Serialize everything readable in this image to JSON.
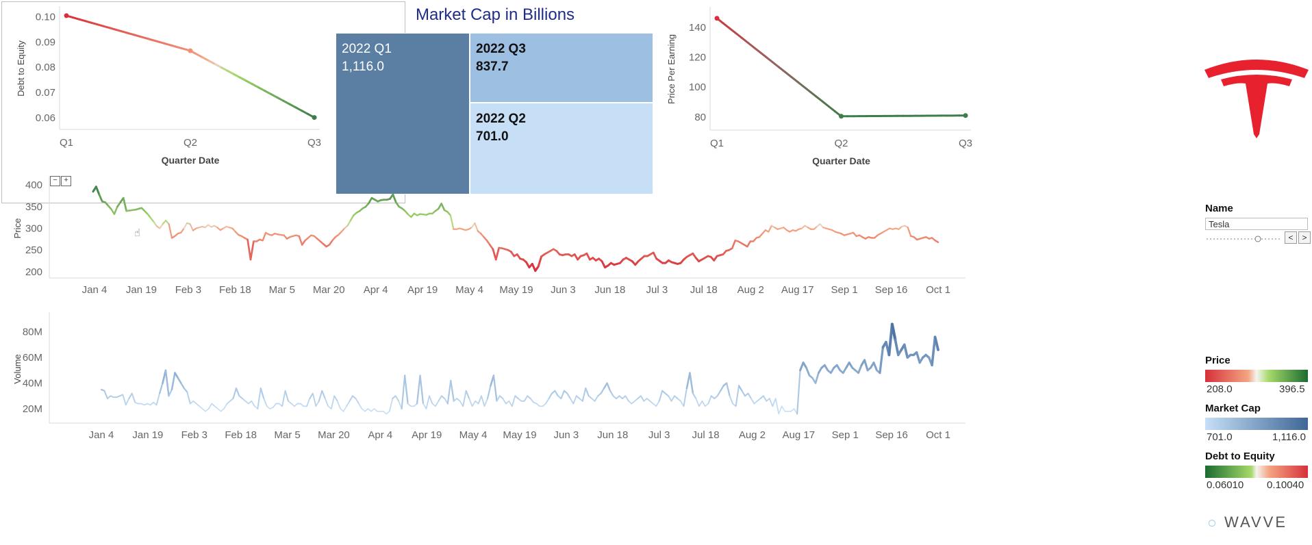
{
  "debt_chart": {
    "ylabel": "Debt to Equity",
    "xlabel": "Quarter Date",
    "categories": [
      "Q1",
      "Q2",
      "Q3"
    ],
    "values": [
      0.1004,
      0.0865,
      0.0601
    ],
    "yticks": [
      0.06,
      0.07,
      0.08,
      0.09,
      0.1
    ],
    "ytick_labels": [
      "0.06",
      "0.07",
      "0.08",
      "0.09",
      "0.10"
    ],
    "ylim": [
      0.057,
      0.102
    ]
  },
  "treemap": {
    "title": "Market Cap in Billions",
    "cells": [
      {
        "label": "2022 Q1",
        "value": "1,116.0",
        "color": "#5b7ea3",
        "text_color": "#ffffff"
      },
      {
        "label": "2022 Q3",
        "value": "837.7",
        "color": "#9dbfe2",
        "text_color": "#111111"
      },
      {
        "label": "2022 Q2",
        "value": "701.0",
        "color": "#c6dff6",
        "text_color": "#111111"
      }
    ]
  },
  "pe_chart": {
    "ylabel": "Price Per Earning",
    "xlabel": "Quarter Date",
    "categories": [
      "Q1",
      "Q2",
      "Q3"
    ],
    "values": [
      146,
      80.5,
      81
    ],
    "yticks": [
      80,
      100,
      120,
      140
    ],
    "ytick_labels": [
      "80",
      "100",
      "120",
      "140"
    ],
    "ylim": [
      74,
      150
    ]
  },
  "price_chart": {
    "ylabel": "Price",
    "yticks": [
      200,
      250,
      300,
      350,
      400
    ],
    "ytick_labels": [
      "200",
      "250",
      "300",
      "350",
      "400"
    ],
    "ylim": [
      195,
      405
    ]
  },
  "volume_chart": {
    "ylabel": "Volume",
    "yticks": [
      20,
      40,
      60,
      80
    ],
    "ytick_labels": [
      "20M",
      "40M",
      "60M",
      "80M"
    ],
    "ylim": [
      12,
      90
    ]
  },
  "x_months": [
    "Jan 4",
    "Jan 19",
    "Feb 3",
    "Feb 18",
    "Mar 5",
    "Mar 20",
    "Apr 4",
    "Apr 19",
    "May 4",
    "May 19",
    "Jun 3",
    "Jun 18",
    "Jul 3",
    "Jul 18",
    "Aug 2",
    "Aug 17",
    "Sep 1",
    "Sep 16",
    "Oct 1"
  ],
  "chart_data": [
    {
      "type": "line",
      "ylabel": "Debt to Equity",
      "xlabel": "Quarter Date",
      "categories": [
        "Q1",
        "Q2",
        "Q3"
      ],
      "values": [
        0.1004,
        0.0865,
        0.0601
      ],
      "ylim": [
        0.057,
        0.102
      ]
    },
    {
      "type": "table",
      "title": "Market Cap in Billions",
      "categories": [
        "2022 Q1",
        "2022 Q3",
        "2022 Q2"
      ],
      "values": [
        1116.0,
        837.7,
        701.0
      ]
    },
    {
      "type": "line",
      "ylabel": "Price Per Earning",
      "xlabel": "Quarter Date",
      "categories": [
        "Q1",
        "Q2",
        "Q3"
      ],
      "values": [
        146,
        80.5,
        81
      ],
      "ylim": [
        74,
        150
      ]
    },
    {
      "type": "line",
      "ylabel": "Price",
      "x_start": "Jan 4",
      "x_end": "Oct 1",
      "values": [
        385,
        396,
        378,
        362,
        360,
        352,
        344,
        333,
        350,
        360,
        370,
        340,
        341,
        342,
        343,
        345,
        347,
        340,
        333,
        324,
        315,
        305,
        300,
        310,
        318,
        310,
        278,
        282,
        288,
        290,
        300,
        312,
        310,
        295,
        300,
        302,
        304,
        302,
        308,
        303,
        306,
        302,
        296,
        300,
        304,
        302,
        300,
        292,
        285,
        282,
        278,
        274,
        228,
        270,
        270,
        274,
        272,
        290,
        286,
        284,
        288,
        286,
        285,
        284,
        276,
        280,
        282,
        284,
        282,
        262,
        272,
        278,
        284,
        282,
        276,
        270,
        264,
        258,
        262,
        272,
        280,
        285,
        292,
        300,
        306,
        318,
        330,
        336,
        340,
        346,
        350,
        358,
        370,
        366,
        362,
        365,
        366,
        366,
        368,
        378,
        360,
        350,
        346,
        340,
        332,
        326,
        334,
        330,
        333,
        332,
        331,
        334,
        334,
        340,
        345,
        357,
        342,
        338,
        330,
        298,
        298,
        300,
        298,
        296,
        298,
        302,
        312,
        294,
        288,
        280,
        272,
        262,
        252,
        228,
        255,
        254,
        252,
        250,
        246,
        236,
        240,
        230,
        228,
        222,
        210,
        218,
        202,
        212,
        235,
        240,
        244,
        248,
        252,
        248,
        240,
        238,
        240,
        240,
        236,
        240,
        228,
        236,
        238,
        242,
        228,
        232,
        226,
        230,
        224,
        210,
        214,
        220,
        216,
        218,
        220,
        228,
        232,
        228,
        224,
        216,
        224,
        230,
        236,
        236,
        240,
        244,
        230,
        225,
        220,
        220,
        226,
        222,
        220,
        218,
        220,
        228,
        234,
        238,
        242,
        232,
        224,
        228,
        232,
        236,
        234,
        226,
        236,
        238,
        240,
        248,
        250,
        254,
        272,
        270,
        266,
        262,
        258,
        270,
        270,
        278,
        280,
        288,
        296,
        292,
        306,
        302,
        298,
        300,
        302,
        296,
        292,
        296,
        294,
        298,
        300,
        306,
        302,
        298,
        298,
        304,
        310,
        302,
        300,
        298,
        296,
        292,
        290,
        288,
        284,
        286,
        288,
        290,
        282,
        284,
        280,
        276,
        280,
        278,
        278,
        284,
        288,
        292,
        296,
        300,
        298,
        300,
        298,
        304,
        306,
        302,
        282,
        280,
        274,
        276,
        278,
        280,
        276,
        278,
        272,
        268
      ]
    },
    {
      "type": "line",
      "ylabel": "Volume",
      "x_start": "Jan 4",
      "x_end": "Oct 1",
      "values": [
        35,
        34,
        28,
        30,
        29,
        29,
        30,
        31,
        23,
        28,
        32,
        25,
        24,
        24,
        23,
        24,
        23,
        25,
        23,
        32,
        40,
        50,
        30,
        35,
        48,
        44,
        40,
        36,
        33,
        24,
        26,
        24,
        22,
        20,
        18,
        20,
        24,
        22,
        20,
        18,
        20,
        24,
        26,
        28,
        36,
        30,
        28,
        26,
        24,
        26,
        22,
        20,
        36,
        28,
        22,
        20,
        21,
        24,
        24,
        22,
        34,
        26,
        24,
        22,
        24,
        24,
        22,
        22,
        28,
        32,
        22,
        26,
        34,
        28,
        22,
        20,
        30,
        26,
        20,
        18,
        22,
        26,
        30,
        28,
        24,
        20,
        18,
        20,
        18,
        20,
        18,
        18,
        18,
        16,
        18,
        28,
        30,
        26,
        20,
        46,
        24,
        22,
        22,
        24,
        46,
        24,
        20,
        30,
        24,
        22,
        26,
        30,
        28,
        24,
        42,
        26,
        28,
        26,
        22,
        34,
        28,
        22,
        26,
        24,
        30,
        22,
        28,
        38,
        46,
        26,
        30,
        28,
        24,
        26,
        22,
        30,
        28,
        26,
        26,
        30,
        28,
        25,
        24,
        22,
        22,
        24,
        28,
        32,
        34,
        30,
        28,
        34,
        32,
        28,
        24,
        30,
        28,
        26,
        36,
        30,
        28,
        26,
        30,
        32,
        36,
        40,
        34,
        30,
        28,
        30,
        28,
        30,
        26,
        24,
        26,
        28,
        30,
        26,
        28,
        26,
        24,
        22,
        26,
        34,
        32,
        30,
        26,
        30,
        28,
        26,
        22,
        36,
        48,
        32,
        28,
        22,
        26,
        22,
        24,
        30,
        28,
        30,
        34,
        38,
        40,
        30,
        24,
        22,
        38,
        34,
        30,
        32,
        28,
        24,
        26,
        28,
        30,
        26,
        28,
        22,
        28,
        16,
        22,
        18,
        18,
        18,
        20,
        16,
        50,
        56,
        52,
        46,
        44,
        40,
        48,
        52,
        54,
        50,
        48,
        52,
        54,
        50,
        48,
        52,
        56,
        52,
        50,
        48,
        54,
        58,
        50,
        52,
        56,
        50,
        48,
        68,
        72,
        62,
        86,
        74,
        62,
        66,
        70,
        60,
        62,
        62,
        64,
        56,
        60,
        62,
        60,
        54,
        76,
        66
      ]
    }
  ],
  "sidebar": {
    "name_label": "Name",
    "name_value": "Tesla",
    "prev": "<",
    "next": ">",
    "price_label": "Price",
    "price_min": "208.0",
    "price_max": "396.5",
    "mcap_label": "Market Cap",
    "mcap_min": "701.0",
    "mcap_max": "1,116.0",
    "de_label": "Debt to Equity",
    "de_min": "0.06010",
    "de_max": "0.10040",
    "brand": "WAVVE"
  },
  "colors": {
    "red": "#d7303a",
    "salmon": "#f4a582",
    "green": "#3d7d4a",
    "blue_dark": "#4e74a4",
    "blue_light": "#c6dff6",
    "tesla_red": "#e8212e"
  }
}
